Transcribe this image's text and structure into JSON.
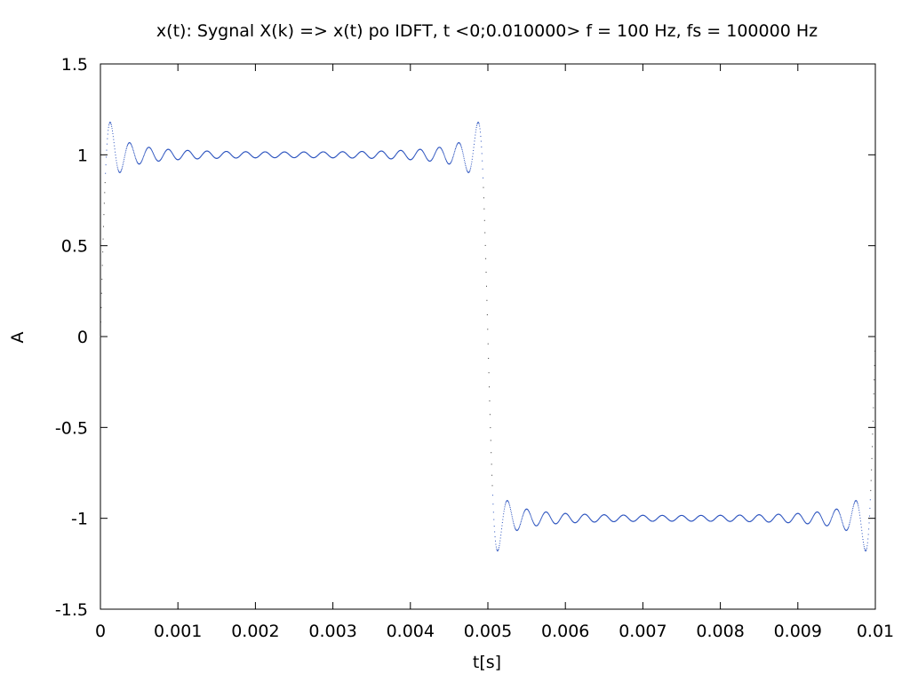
{
  "chart_data": {
    "type": "scatter",
    "title": "x(t): Sygnal X(k) => x(t) po IDFT, t <0;0.010000> f = 100 Hz, fs = 100000 Hz",
    "xlabel": "t[s]",
    "ylabel": "A",
    "xlim": [
      0,
      0.01
    ],
    "ylim": [
      -1.5,
      1.5
    ],
    "x_ticks": [
      0,
      0.001,
      0.002,
      0.003,
      0.004,
      0.005,
      0.006,
      0.007,
      0.008,
      0.009,
      0.01
    ],
    "x_tick_labels": [
      "0",
      "0.001",
      "0.002",
      "0.003",
      "0.004",
      "0.005",
      "0.006",
      "0.007",
      "0.008",
      "0.009",
      "0.01"
    ],
    "y_ticks": [
      -1.5,
      -1,
      -0.5,
      0,
      0.5,
      1,
      1.5
    ],
    "y_tick_labels": [
      "-1.5",
      "-1",
      "-0.5",
      "0",
      "0.5",
      "1",
      "1.5"
    ],
    "grid": false,
    "legend": false,
    "series": [
      {
        "color": "#2a52be",
        "signal": {
          "shape": "square-wave",
          "frequency_hz": 100,
          "sample_rate_hz": 100000,
          "amplitude": 1,
          "t_start": 0,
          "t_end": 0.01,
          "overshoot": 0.18
        },
        "points": [
          [
            0,
            0.0
          ],
          [
            0.0001,
            1.15
          ],
          [
            0.0002,
            1.0
          ],
          [
            0.0003,
            0.92
          ],
          [
            0.0004,
            1.06
          ],
          [
            0.0005,
            0.95
          ],
          [
            0.0007,
            1.03
          ],
          [
            0.001,
            0.99
          ],
          [
            0.0015,
            1.01
          ],
          [
            0.002,
            0.99
          ],
          [
            0.0025,
            1.01
          ],
          [
            0.003,
            0.99
          ],
          [
            0.0035,
            1.01
          ],
          [
            0.004,
            0.99
          ],
          [
            0.0045,
            1.03
          ],
          [
            0.0047,
            0.94
          ],
          [
            0.0048,
            1.08
          ],
          [
            0.0049,
            1.17
          ],
          [
            0.005,
            0.0
          ],
          [
            0.0051,
            -1.16
          ],
          [
            0.0052,
            -0.92
          ],
          [
            0.0053,
            -1.06
          ],
          [
            0.0055,
            -0.96
          ],
          [
            0.006,
            -1.01
          ],
          [
            0.0065,
            -0.99
          ],
          [
            0.007,
            -1.01
          ],
          [
            0.0075,
            -0.99
          ],
          [
            0.008,
            -1.01
          ],
          [
            0.0085,
            -0.99
          ],
          [
            0.009,
            -1.01
          ],
          [
            0.0095,
            -0.97
          ],
          [
            0.0097,
            -1.06
          ],
          [
            0.0098,
            -0.92
          ],
          [
            0.0099,
            -1.16
          ],
          [
            0.01,
            0.0
          ]
        ]
      }
    ]
  }
}
